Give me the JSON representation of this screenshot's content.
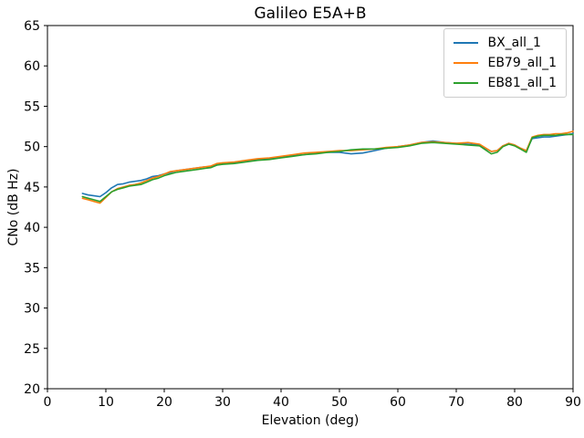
{
  "chart_data": {
    "type": "line",
    "title": "Galileo E5A+B",
    "xlabel": "Elevation (deg)",
    "ylabel": "CNo (dB Hz)",
    "xlim": [
      0,
      90
    ],
    "ylim": [
      20,
      65
    ],
    "xticks": [
      0,
      10,
      20,
      30,
      40,
      50,
      60,
      70,
      80,
      90
    ],
    "yticks": [
      20,
      25,
      30,
      35,
      40,
      45,
      50,
      55,
      60,
      65
    ],
    "grid": false,
    "legend_position": "upper right",
    "frame_color": "#000000",
    "x": [
      6,
      7,
      8,
      9,
      10,
      11,
      12,
      13,
      14,
      15,
      16,
      17,
      18,
      19,
      20,
      21,
      22,
      23,
      24,
      25,
      26,
      27,
      28,
      29,
      30,
      32,
      34,
      36,
      38,
      40,
      42,
      44,
      46,
      48,
      50,
      52,
      54,
      56,
      58,
      60,
      62,
      64,
      66,
      68,
      70,
      72,
      74,
      76,
      77,
      78,
      79,
      80,
      81,
      82,
      83,
      84,
      85,
      86,
      87,
      88,
      89,
      90
    ],
    "series": [
      {
        "name": "BX_all_1",
        "color": "#1f77b4",
        "values": [
          44.2,
          44.0,
          43.9,
          43.8,
          44.3,
          44.9,
          45.3,
          45.4,
          45.6,
          45.7,
          45.8,
          46.0,
          46.3,
          46.4,
          46.6,
          46.8,
          47.0,
          47.1,
          47.2,
          47.3,
          47.4,
          47.5,
          47.5,
          47.8,
          47.9,
          48.0,
          48.2,
          48.4,
          48.5,
          48.7,
          48.9,
          49.0,
          49.2,
          49.3,
          49.3,
          49.1,
          49.2,
          49.5,
          49.8,
          50.0,
          50.2,
          50.5,
          50.7,
          50.5,
          50.4,
          50.3,
          50.2,
          49.4,
          49.5,
          50.1,
          50.4,
          50.2,
          49.8,
          49.5,
          51.0,
          51.1,
          51.2,
          51.2,
          51.3,
          51.4,
          51.5,
          51.6
        ]
      },
      {
        "name": "EB79_all_1",
        "color": "#ff7f0e",
        "values": [
          43.6,
          43.4,
          43.2,
          43.0,
          43.7,
          44.4,
          44.8,
          45.0,
          45.2,
          45.3,
          45.5,
          45.8,
          46.1,
          46.3,
          46.6,
          46.9,
          47.0,
          47.1,
          47.2,
          47.3,
          47.4,
          47.5,
          47.6,
          47.9,
          48.0,
          48.1,
          48.3,
          48.5,
          48.6,
          48.8,
          49.0,
          49.2,
          49.3,
          49.4,
          49.5,
          49.5,
          49.6,
          49.7,
          49.9,
          50.0,
          50.2,
          50.5,
          50.6,
          50.5,
          50.4,
          50.5,
          50.3,
          49.4,
          49.5,
          50.1,
          50.4,
          50.2,
          49.8,
          49.5,
          51.2,
          51.4,
          51.5,
          51.5,
          51.6,
          51.6,
          51.7,
          51.9
        ]
      },
      {
        "name": "EB81_all_1",
        "color": "#2ca02c",
        "values": [
          43.8,
          43.6,
          43.4,
          43.2,
          43.8,
          44.4,
          44.7,
          44.9,
          45.1,
          45.2,
          45.3,
          45.6,
          45.9,
          46.1,
          46.4,
          46.6,
          46.8,
          46.9,
          47.0,
          47.1,
          47.2,
          47.3,
          47.4,
          47.7,
          47.8,
          47.9,
          48.1,
          48.3,
          48.4,
          48.6,
          48.8,
          49.0,
          49.1,
          49.3,
          49.4,
          49.6,
          49.7,
          49.7,
          49.8,
          49.9,
          50.1,
          50.4,
          50.5,
          50.4,
          50.3,
          50.2,
          50.1,
          49.1,
          49.3,
          50.0,
          50.3,
          50.1,
          49.7,
          49.3,
          51.1,
          51.3,
          51.4,
          51.4,
          51.4,
          51.5,
          51.5,
          51.5
        ]
      }
    ]
  }
}
